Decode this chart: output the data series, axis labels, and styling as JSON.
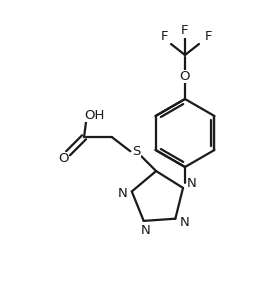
{
  "bg_color": "#ffffff",
  "line_color": "#1a1a1a",
  "line_width": 1.6,
  "font_size": 9.5,
  "figsize": [
    2.63,
    2.88
  ],
  "dpi": 100,
  "xlim": [
    0,
    263
  ],
  "ylim": [
    0,
    288
  ]
}
